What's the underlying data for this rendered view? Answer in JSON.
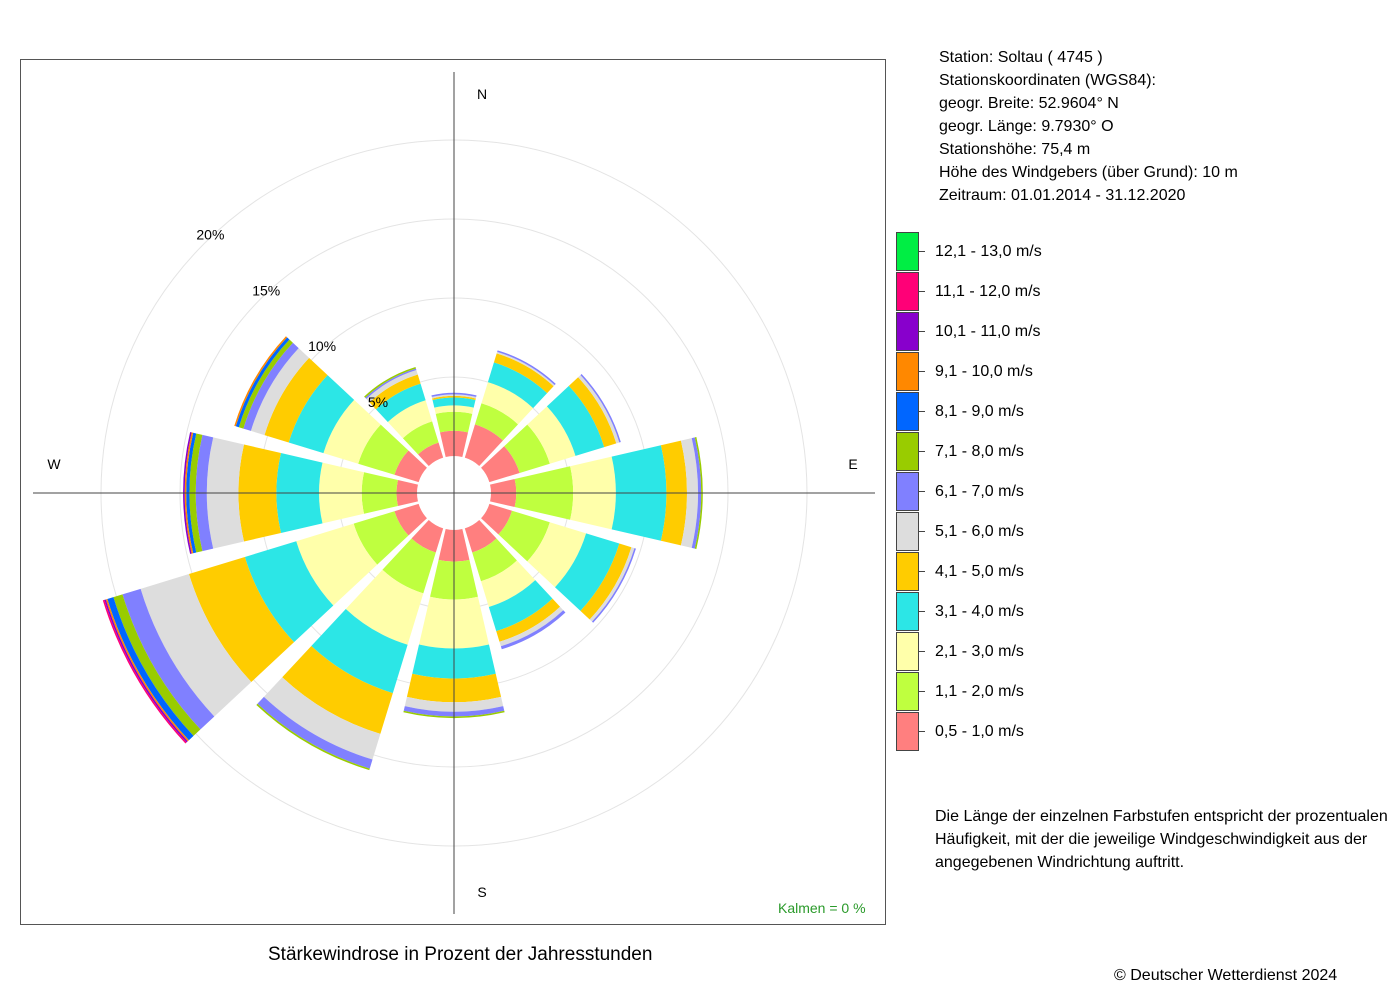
{
  "station": {
    "line1": "Station:  Soltau  ( 4745 )",
    "line2": "Stationskoordinaten (WGS84):",
    "line3": "geogr. Breite: 52.9604° N",
    "line4": "geogr. Länge:   9.7930° O",
    "line5": "Stationshöhe: 75,4 m",
    "line6": "Höhe des Windgebers (über Grund): 10 m",
    "line7": "Zeitraum: 01.01.2014 - 31.12.2020"
  },
  "note": "Die Länge der einzelnen Farbstufen entspricht der prozentualen Häufigkeit, mit der die jeweilige Windgeschwindigkeit aus der angegebenen Windrichtung auftritt.",
  "copyright": "© Deutscher Wetterdienst  2024",
  "calm": "Kalmen  =  0 %",
  "chart_data": {
    "type": "wind-rose",
    "title": "Stärkewindrose in Prozent der Jahresstunden",
    "radial_unit": "%",
    "radial_ticks": [
      5,
      10,
      15,
      20
    ],
    "radial_tick_labels": [
      "5%",
      "10%",
      "15%",
      "20%"
    ],
    "direction_labels": {
      "N": "N",
      "E": "E",
      "S": "S",
      "W": "W"
    },
    "calm_percent": 0,
    "directions_deg": [
      0,
      30,
      60,
      90,
      120,
      150,
      180,
      210,
      240,
      270,
      300,
      330
    ],
    "speed_classes": [
      {
        "label": "0,5 - 1,0 m/s",
        "color": "#ff7f7f"
      },
      {
        "label": "1,1 - 2,0 m/s",
        "color": "#bfff3f"
      },
      {
        "label": "2,1 - 3,0 m/s",
        "color": "#ffffaa"
      },
      {
        "label": "3,1 - 4,0 m/s",
        "color": "#2ce6e6"
      },
      {
        "label": "4,1 - 5,0 m/s",
        "color": "#ffcc00"
      },
      {
        "label": "5,1 - 6,0 m/s",
        "color": "#dddddd"
      },
      {
        "label": "6,1 - 7,0 m/s",
        "color": "#8080ff"
      },
      {
        "label": "7,1 - 8,0 m/s",
        "color": "#99cc00"
      },
      {
        "label": "8,1 - 9,0 m/s",
        "color": "#0066ff"
      },
      {
        "label": "9,1 - 10,0 m/s",
        "color": "#ff8800"
      },
      {
        "label": "10,1 - 11,0 m/s",
        "color": "#8800cc"
      },
      {
        "label": "11,1 - 12,0 m/s",
        "color": "#ff0077"
      },
      {
        "label": "12,1 - 13,0 m/s",
        "color": "#00ee44"
      }
    ],
    "cumulative_percent": [
      [
        1.6,
        2.8,
        3.2,
        3.7,
        3.8,
        3.9,
        4.0,
        4.0,
        4.0,
        4.0,
        4.0,
        4.0,
        4.0
      ],
      [
        2.2,
        3.6,
        5.0,
        6.3,
        6.9,
        7.0,
        7.1,
        7.1,
        7.1,
        7.1,
        7.1,
        7.1,
        7.1
      ],
      [
        2.0,
        4.0,
        5.7,
        7.6,
        8.4,
        8.6,
        8.7,
        8.7,
        8.7,
        8.7,
        8.7,
        8.7,
        8.7
      ],
      [
        1.6,
        5.2,
        7.9,
        11.1,
        12.4,
        13.1,
        13.3,
        13.4,
        13.4,
        13.4,
        13.4,
        13.4,
        13.4
      ],
      [
        1.5,
        4.0,
        6.4,
        8.6,
        9.4,
        9.6,
        9.7,
        9.7,
        9.7,
        9.7,
        9.7,
        9.7,
        9.7
      ],
      [
        1.6,
        3.5,
        5.2,
        6.8,
        7.5,
        7.8,
        8.0,
        8.0,
        8.0,
        8.0,
        8.0,
        8.0,
        8.0
      ],
      [
        2.0,
        4.4,
        7.5,
        9.4,
        10.9,
        11.5,
        11.8,
        11.9,
        11.9,
        11.9,
        11.9,
        11.9,
        11.9
      ],
      [
        1.6,
        4.3,
        7.7,
        10.9,
        13.6,
        15.3,
        15.9,
        16.0,
        16.0,
        16.0,
        16.0,
        16.0,
        16.0
      ],
      [
        1.6,
        4.3,
        8.1,
        11.5,
        15.2,
        18.4,
        19.6,
        20.2,
        20.6,
        20.7,
        20.8,
        20.9,
        20.9
      ],
      [
        1.3,
        3.5,
        6.2,
        8.9,
        11.3,
        13.3,
        14.0,
        14.4,
        14.6,
        14.7,
        14.8,
        14.8,
        14.8
      ],
      [
        1.6,
        4.0,
        6.3,
        8.6,
        10.2,
        11.1,
        11.6,
        11.9,
        12.1,
        12.2,
        12.2,
        12.2,
        12.2
      ],
      [
        1.0,
        2.4,
        3.8,
        4.9,
        5.5,
        5.8,
        5.9,
        6.0,
        6.0,
        6.0,
        6.0,
        6.0,
        6.0
      ]
    ]
  }
}
